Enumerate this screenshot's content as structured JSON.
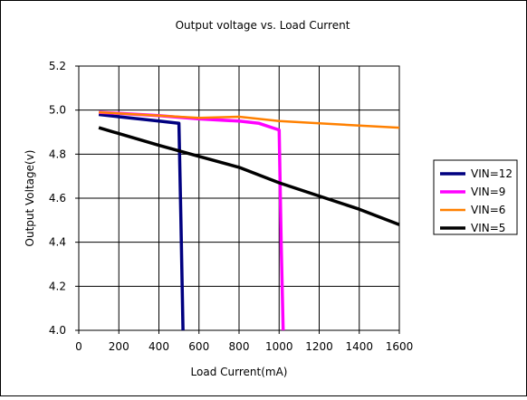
{
  "chart_data": {
    "type": "line",
    "title": "Output voltage vs. Load Current",
    "xlabel": "Load Current(mA)",
    "ylabel": "Output Voltage(v)",
    "xlim": [
      0,
      1600
    ],
    "ylim": [
      4.0,
      5.2
    ],
    "xticks": [
      0,
      200,
      400,
      600,
      800,
      1000,
      1200,
      1400,
      1600
    ],
    "yticks": [
      4.0,
      4.2,
      4.4,
      4.6,
      4.8,
      5.0,
      5.2
    ],
    "xtick_labels": [
      "0",
      "200",
      "400",
      "600",
      "800",
      "1000",
      "1200",
      "1400",
      "1600"
    ],
    "ytick_labels": [
      "4.0",
      "4.2",
      "4.4",
      "4.6",
      "4.8",
      "5.0",
      "5.2"
    ],
    "grid": true,
    "legend_position": "right",
    "series": [
      {
        "name": "VIN=12",
        "color": "#000080",
        "x": [
          100,
          200,
          300,
          400,
          500,
          510,
          520
        ],
        "y": [
          4.98,
          4.97,
          4.96,
          4.95,
          4.94,
          4.5,
          4.0
        ]
      },
      {
        "name": "VIN=9",
        "color": "#ff00ff",
        "x": [
          100,
          200,
          400,
          600,
          800,
          900,
          1000,
          1010,
          1020
        ],
        "y": [
          4.99,
          4.985,
          4.975,
          4.96,
          4.95,
          4.94,
          4.91,
          4.4,
          4.0
        ]
      },
      {
        "name": "VIN=6",
        "color": "#ff8000",
        "x": [
          100,
          400,
          600,
          800,
          1000,
          1200,
          1400,
          1600
        ],
        "y": [
          4.99,
          4.975,
          4.965,
          4.97,
          4.95,
          4.94,
          4.93,
          4.92
        ]
      },
      {
        "name": "VIN=5",
        "color": "#000000",
        "x": [
          100,
          400,
          600,
          800,
          1000,
          1200,
          1400,
          1600
        ],
        "y": [
          4.92,
          4.84,
          4.79,
          4.74,
          4.67,
          4.61,
          4.55,
          4.48
        ]
      }
    ]
  }
}
